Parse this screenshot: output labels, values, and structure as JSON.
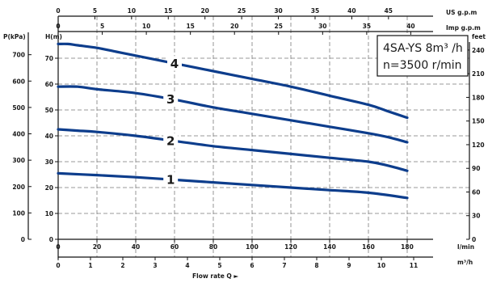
{
  "chart_data": {
    "type": "line",
    "legend": {
      "model": "4SA-YS 8m³ /h",
      "speed": "n=3500 r/min"
    },
    "axis_titles": {
      "pressure": "P(kPa)",
      "head_m": "H(m)",
      "head_feet": "feet",
      "us_gpm": "US g.p.m",
      "imp_gpm": "Imp g.p.m",
      "flow_lmin": "l/min",
      "flow_m3h": "m³/h",
      "flow_rate": "Flow rate Q  ►"
    },
    "ticks": {
      "head_m": [
        "0",
        "10",
        "20",
        "30",
        "40",
        "50",
        "60",
        "70"
      ],
      "pressure_kpa": [
        "0",
        "100",
        "200",
        "300",
        "400",
        "500",
        "600",
        "700"
      ],
      "head_feet": [
        "0",
        "30",
        "60",
        "90",
        "120",
        "150",
        "180",
        "210",
        "240"
      ],
      "us_gpm": [
        "0",
        "5",
        "10",
        "15",
        "20",
        "25",
        "30",
        "35",
        "40",
        "45"
      ],
      "imp_gpm": [
        "0",
        "5",
        "10",
        "15",
        "20",
        "25",
        "30",
        "35",
        "40"
      ],
      "flow_lmin": [
        "0",
        "20",
        "40",
        "60",
        "80",
        "100",
        "120",
        "140",
        "160",
        "180"
      ],
      "flow_m3h": [
        "0",
        "1",
        "2",
        "3",
        "4",
        "5",
        "6",
        "7",
        "8",
        "9",
        "10",
        "11"
      ]
    },
    "xlim_lmin": [
      0,
      190
    ],
    "ylim_m": [
      0,
      80
    ],
    "grid": true,
    "x_unit": "l/min",
    "y_unit": "m",
    "series": [
      {
        "name": "1",
        "label_at_x": 58,
        "x": [
          0,
          20,
          40,
          60,
          80,
          100,
          120,
          140,
          160,
          180
        ],
        "y": [
          25.5,
          24.8,
          24,
          23,
          22,
          21,
          20,
          19,
          18,
          16
        ]
      },
      {
        "name": "2",
        "label_at_x": 58,
        "x": [
          0,
          10,
          20,
          40,
          60,
          80,
          100,
          120,
          140,
          160,
          170,
          180
        ],
        "y": [
          42.5,
          42,
          41.5,
          40,
          38,
          36,
          34.5,
          33,
          31.5,
          30,
          28.5,
          26.5
        ]
      },
      {
        "name": "3",
        "label_at_x": 58,
        "x": [
          0,
          10,
          20,
          40,
          60,
          80,
          100,
          120,
          140,
          160,
          170,
          180
        ],
        "y": [
          59,
          59,
          58,
          56.5,
          54,
          51,
          48.5,
          46,
          43.5,
          41,
          39.5,
          37.5
        ]
      },
      {
        "name": "4",
        "label_at_x": 60,
        "x": [
          0,
          5,
          10,
          20,
          30,
          40,
          60,
          80,
          100,
          120,
          140,
          160,
          170,
          180
        ],
        "y": [
          75.5,
          75.5,
          75,
          74,
          72.5,
          71,
          68,
          65,
          62,
          59,
          55.5,
          52,
          49.5,
          47
        ]
      }
    ]
  }
}
